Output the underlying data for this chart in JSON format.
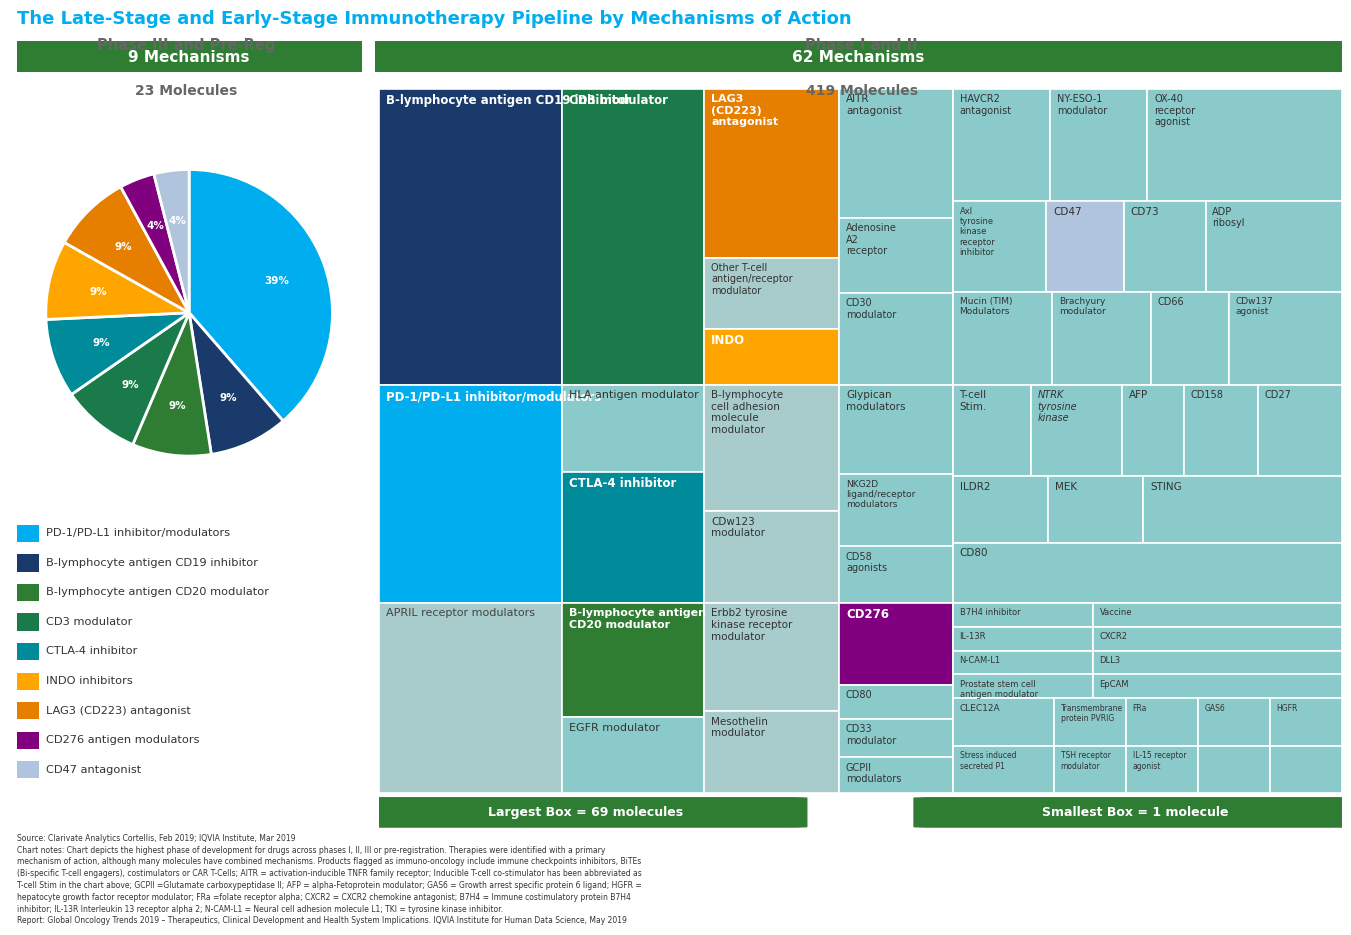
{
  "title": "The Late-Stage and Early-Stage Immunotherapy Pipeline by Mechanisms of Action",
  "title_color": "#00AEEF",
  "left_header": "Phase III and Pre-Reg",
  "right_header": "Phase I and II",
  "left_badge": "9 Mechanisms",
  "right_badge": "62 Mechanisms",
  "left_sub": "23 Molecules",
  "right_sub": "419 Molecules",
  "badge_color": "#2E7D32",
  "pie_data": {
    "values": [
      39,
      9,
      9,
      9,
      9,
      9,
      9,
      4,
      4
    ],
    "labels": [
      "PD-1/PD-L1 inhibitor/modulators",
      "B-lymphocyte antigen CD19 inhibitor",
      "B-lymphocyte antigen CD20 modulator",
      "CD3 modulator",
      "CTLA-4 inhibitor",
      "INDO inhibitors",
      "LAG3 (CD223) antagonist",
      "CD276 antigen modulators",
      "CD47 antagonist"
    ],
    "colors": [
      "#00AEEF",
      "#1A3A6B",
      "#2E7D32",
      "#1A7A4A",
      "#008B9A",
      "#FFA500",
      "#E67E00",
      "#800080",
      "#B0C4DE"
    ],
    "pct_labels": [
      "39%",
      "9%",
      "9%",
      "9%",
      "9%",
      "9%",
      "9%",
      "4%",
      "4%"
    ]
  },
  "legend_items": [
    {
      "label": "PD-1/PD-L1 inhibitor/modulators",
      "color": "#00AEEF"
    },
    {
      "label": "B-lymphocyte antigen CD19 inhibitor",
      "color": "#1A3A6B"
    },
    {
      "label": "B-lymphocyte antigen CD20 modulator",
      "color": "#2E7D32"
    },
    {
      "label": "CD3 modulator",
      "color": "#1A7A4A"
    },
    {
      "label": "CTLA-4 inhibitor",
      "color": "#008B9A"
    },
    {
      "label": "INDO inhibitors",
      "color": "#FFA500"
    },
    {
      "label": "LAG3 (CD223) antagonist",
      "color": "#E67E00"
    },
    {
      "label": "CD276 antigen modulators",
      "color": "#800080"
    },
    {
      "label": "CD47 antagonist",
      "color": "#B0C4DE"
    }
  ],
  "source_text": "Source: Clarivate Analytics Cortellis, Feb 2019; IQVIA Institute, Mar 2019\nChart notes: Chart depicts the highest phase of development for drugs across phases I, II, III or pre-registration. Therapies were identified with a primary\nmechanism of action, although many molecules have combined mechanisms. Products flagged as immuno-oncology include immune checkpoints inhibitors, BiTEs\n(Bi-specific T-cell engagers), costimulators or CAR T-Cells; AITR = activation-inducible TNFR family receptor; Inducible T-cell co-stimulator has been abbreviated as\nT-cell Stim in the chart above; GCPII =Glutamate carboxypeptidase II; AFP = alpha-Fetoprotein modulator; GAS6 = Growth arrest specific protein 6 ligand; HGFR =\nhepatocyte growth factor receptor modulator; FRa =folate receptor alpha; CXCR2 = CXCR2 chemokine antagonist; B7H4 = Immune costimulatory protein B7H4\ninhibitor; IL-13R Interleukin 13 receptor alpha 2; N-CAM-L1 = Neural cell adhesion molecule L1; TKI = tyrosine kinase inhibitor.\nReport: Global Oncology Trends 2019 – Therapeutics, Clinical Development and Health System Implications. IQVIA Institute for Human Data Science, May 2019",
  "light_teal": "#8BCACA",
  "med_teal": "#6BBCBC",
  "dark_teal": "#008B9A",
  "col1_cd19": "#1A3A6B",
  "col1_pd1": "#00AEEF",
  "col1_april": "#A8CBCB",
  "col2_cd3": "#1A7A4A",
  "col2_hla": "#8BCACA",
  "col2_ctla4": "#008B9A",
  "col2_cd20": "#2E7D32",
  "col2_egfr": "#8BCACA",
  "col3_lag3": "#E67E00",
  "col3_other": "#A8CBCB",
  "col3_indo": "#FFA500",
  "col3_blcam": "#A8CBCB",
  "col3_cdw123": "#A8CBCB",
  "col3_erbb2": "#A8CBCB",
  "col3_meso": "#A8CBCB",
  "col4_light": "#8BCACA",
  "col4_cd276": "#800080",
  "col5_light": "#8BCACA",
  "col5_cd47": "#B0C4DE",
  "bottom_left_label": "Largest Box = 69 molecules",
  "bottom_right_label": "Smallest Box = 1 molecule"
}
